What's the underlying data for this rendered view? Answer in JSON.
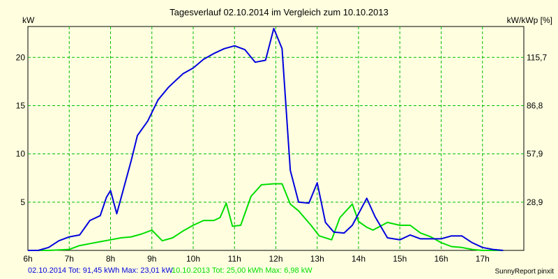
{
  "chart_data": {
    "type": "line",
    "title": "Tagesverlauf 02.10.2014 im Vergleich zum 10.10.2013",
    "ylabel_left": "kW",
    "ylabel_right": "kW/kWp [%]",
    "xlim": [
      6,
      18
    ],
    "ylim": [
      0,
      23.2
    ],
    "grid": true,
    "x_ticks": [
      "6h",
      "7h",
      "8h",
      "9h",
      "10h",
      "11h",
      "12h",
      "13h",
      "14h",
      "15h",
      "16h",
      "17h"
    ],
    "y_ticks_left": [
      5,
      10,
      15,
      20
    ],
    "y_ticks_right": [
      {
        "value": 5,
        "label": "28,9"
      },
      {
        "value": 10,
        "label": "57,9"
      },
      {
        "value": 15,
        "label": "86,8"
      },
      {
        "value": 20,
        "label": "115,7"
      }
    ],
    "series": [
      {
        "name": "02.10.2014",
        "color": "#0000dd",
        "x": [
          6.0,
          6.25,
          6.5,
          6.75,
          7.0,
          7.25,
          7.5,
          7.75,
          7.9,
          8.0,
          8.15,
          8.5,
          8.65,
          8.9,
          9.15,
          9.4,
          9.75,
          10.0,
          10.25,
          10.5,
          10.75,
          11.0,
          11.25,
          11.5,
          11.75,
          11.95,
          12.15,
          12.35,
          12.55,
          12.8,
          13.0,
          13.2,
          13.4,
          13.65,
          13.85,
          14.2,
          14.4,
          14.7,
          15.0,
          15.25,
          15.5,
          15.75,
          16.0,
          16.25,
          16.5,
          16.75,
          17.0,
          17.25,
          17.5
        ],
        "y": [
          0,
          0,
          0.3,
          1,
          1.4,
          1.6,
          3.1,
          3.6,
          5.5,
          6.2,
          3.8,
          9.3,
          11.9,
          13.4,
          15.6,
          16.9,
          18.3,
          18.9,
          19.8,
          20.4,
          20.9,
          21.2,
          20.8,
          19.5,
          19.7,
          23.0,
          20.9,
          8.3,
          5.0,
          4.9,
          7.0,
          2.9,
          1.9,
          1.8,
          2.6,
          5.4,
          3.5,
          1.3,
          1.1,
          1.6,
          1.2,
          1.2,
          1.2,
          1.5,
          1.5,
          0.8,
          0.3,
          0.1,
          0
        ]
      },
      {
        "name": "10.10.2013",
        "color": "#00dd00",
        "x": [
          6.0,
          6.5,
          7.0,
          7.25,
          7.5,
          7.75,
          8.0,
          8.25,
          8.5,
          8.75,
          9.0,
          9.25,
          9.5,
          9.75,
          10.0,
          10.25,
          10.5,
          10.65,
          10.8,
          10.95,
          11.15,
          11.4,
          11.65,
          11.95,
          12.15,
          12.35,
          12.55,
          12.85,
          13.05,
          13.35,
          13.55,
          13.85,
          14.0,
          14.2,
          14.35,
          14.7,
          15.0,
          15.25,
          15.5,
          15.75,
          16.0,
          16.25,
          16.5,
          16.75,
          17.0,
          17.25,
          17.5
        ],
        "y": [
          0,
          0,
          0.1,
          0.5,
          0.7,
          0.9,
          1.1,
          1.3,
          1.4,
          1.7,
          2.1,
          1.0,
          1.3,
          2.0,
          2.6,
          3.1,
          3.1,
          3.4,
          4.9,
          2.5,
          2.6,
          5.6,
          6.8,
          6.9,
          6.9,
          4.8,
          4.1,
          2.6,
          1.5,
          1.1,
          3.4,
          4.8,
          3.0,
          2.4,
          2.1,
          2.9,
          2.6,
          2.6,
          1.8,
          1.4,
          0.8,
          0.4,
          0.3,
          0.1,
          0,
          0,
          0
        ]
      }
    ],
    "footer": [
      {
        "text": "02.10.2014 Tot: 91,45 kWh Max: 23,01 kW",
        "color": "#0000dd"
      },
      {
        "text": "10.10.2013 Tot: 25,00 kWh Max: 6,98 kW",
        "color": "#00dd00"
      }
    ],
    "credit": "SunnyReport pinxit"
  }
}
